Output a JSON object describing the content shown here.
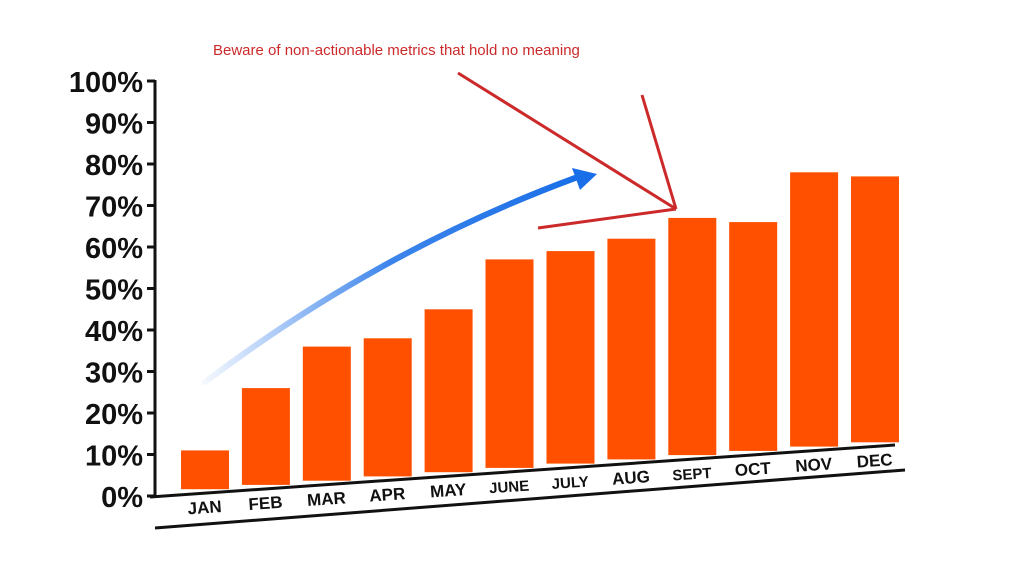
{
  "chart_data": {
    "type": "bar",
    "categories": [
      "JAN",
      "FEB",
      "MAR",
      "APR",
      "MAY",
      "JUNE",
      "JULY",
      "AUG",
      "SEPT",
      "OCT",
      "NOV",
      "DEC"
    ],
    "values": [
      11,
      26,
      36,
      38,
      45,
      57,
      59,
      62,
      67,
      66,
      78,
      77
    ],
    "y_tick_labels": [
      "0%",
      "10%",
      "20%",
      "30%",
      "40%",
      "50%",
      "60%",
      "70%",
      "80%",
      "90%",
      "100%"
    ],
    "ylim": [
      0,
      100
    ],
    "title": "",
    "xlabel": "",
    "ylabel": "",
    "grid": false,
    "annotation": "Beware of non-actionable metrics that hold no meaning"
  },
  "colors": {
    "bar": "#ff5000",
    "axis": "#111111",
    "annotation": "#cc2a2a",
    "trend_arrow": "#1a6fe8"
  }
}
